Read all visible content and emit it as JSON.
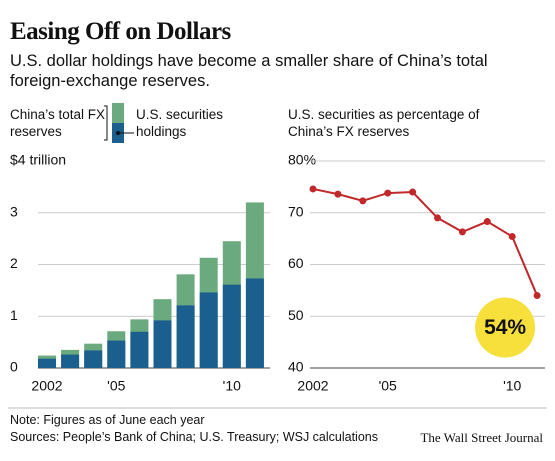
{
  "title": "Easing Off on Dollars",
  "subtitle": "U.S. dollar holdings have become a smaller share of China’s total foreign-exchange reserves.",
  "note": "Note: Figures as of June each year",
  "sources": "Sources: People’s Bank of China; U.S. Treasury; WSJ calculations",
  "credit": "The Wall Street Journal",
  "chart_data": [
    {
      "type": "bar",
      "overlap": true,
      "categories": [
        "2002",
        null,
        null,
        "'05",
        null,
        null,
        null,
        null,
        "'10",
        null
      ],
      "series": [
        {
          "name": "China’s total FX reserves",
          "color": "#6aaa7e",
          "values": [
            0.24,
            0.35,
            0.47,
            0.71,
            0.94,
            1.33,
            1.81,
            2.13,
            2.45,
            3.2
          ]
        },
        {
          "name": "U.S. securities holdings",
          "color": "#1b5f8e",
          "values": [
            0.18,
            0.26,
            0.34,
            0.53,
            0.7,
            0.92,
            1.21,
            1.46,
            1.61,
            1.73
          ]
        }
      ],
      "ylim": [
        0,
        4
      ],
      "yticks": [
        0,
        1,
        2,
        3,
        {
          "value": 4,
          "label": "$4 trillion"
        }
      ],
      "grid": true
    },
    {
      "type": "line",
      "title": "U.S. securities as percentage of China’s FX reserves",
      "categories": [
        "2002",
        null,
        null,
        "'05",
        null,
        null,
        null,
        null,
        "'10",
        null
      ],
      "series": [
        {
          "name": "U.S. securities share",
          "color": "#c0282a",
          "values": [
            74.6,
            73.6,
            72.3,
            73.8,
            74,
            69,
            66.3,
            68.3,
            65.4,
            54
          ],
          "value_labels": [
            null,
            null,
            null,
            null,
            null,
            null,
            null,
            null,
            null,
            "54%"
          ]
        }
      ],
      "ylim": [
        40,
        80
      ],
      "yticks": [
        40,
        50,
        60,
        70,
        {
          "value": 80,
          "label": "80%"
        }
      ],
      "grid": true
    }
  ]
}
